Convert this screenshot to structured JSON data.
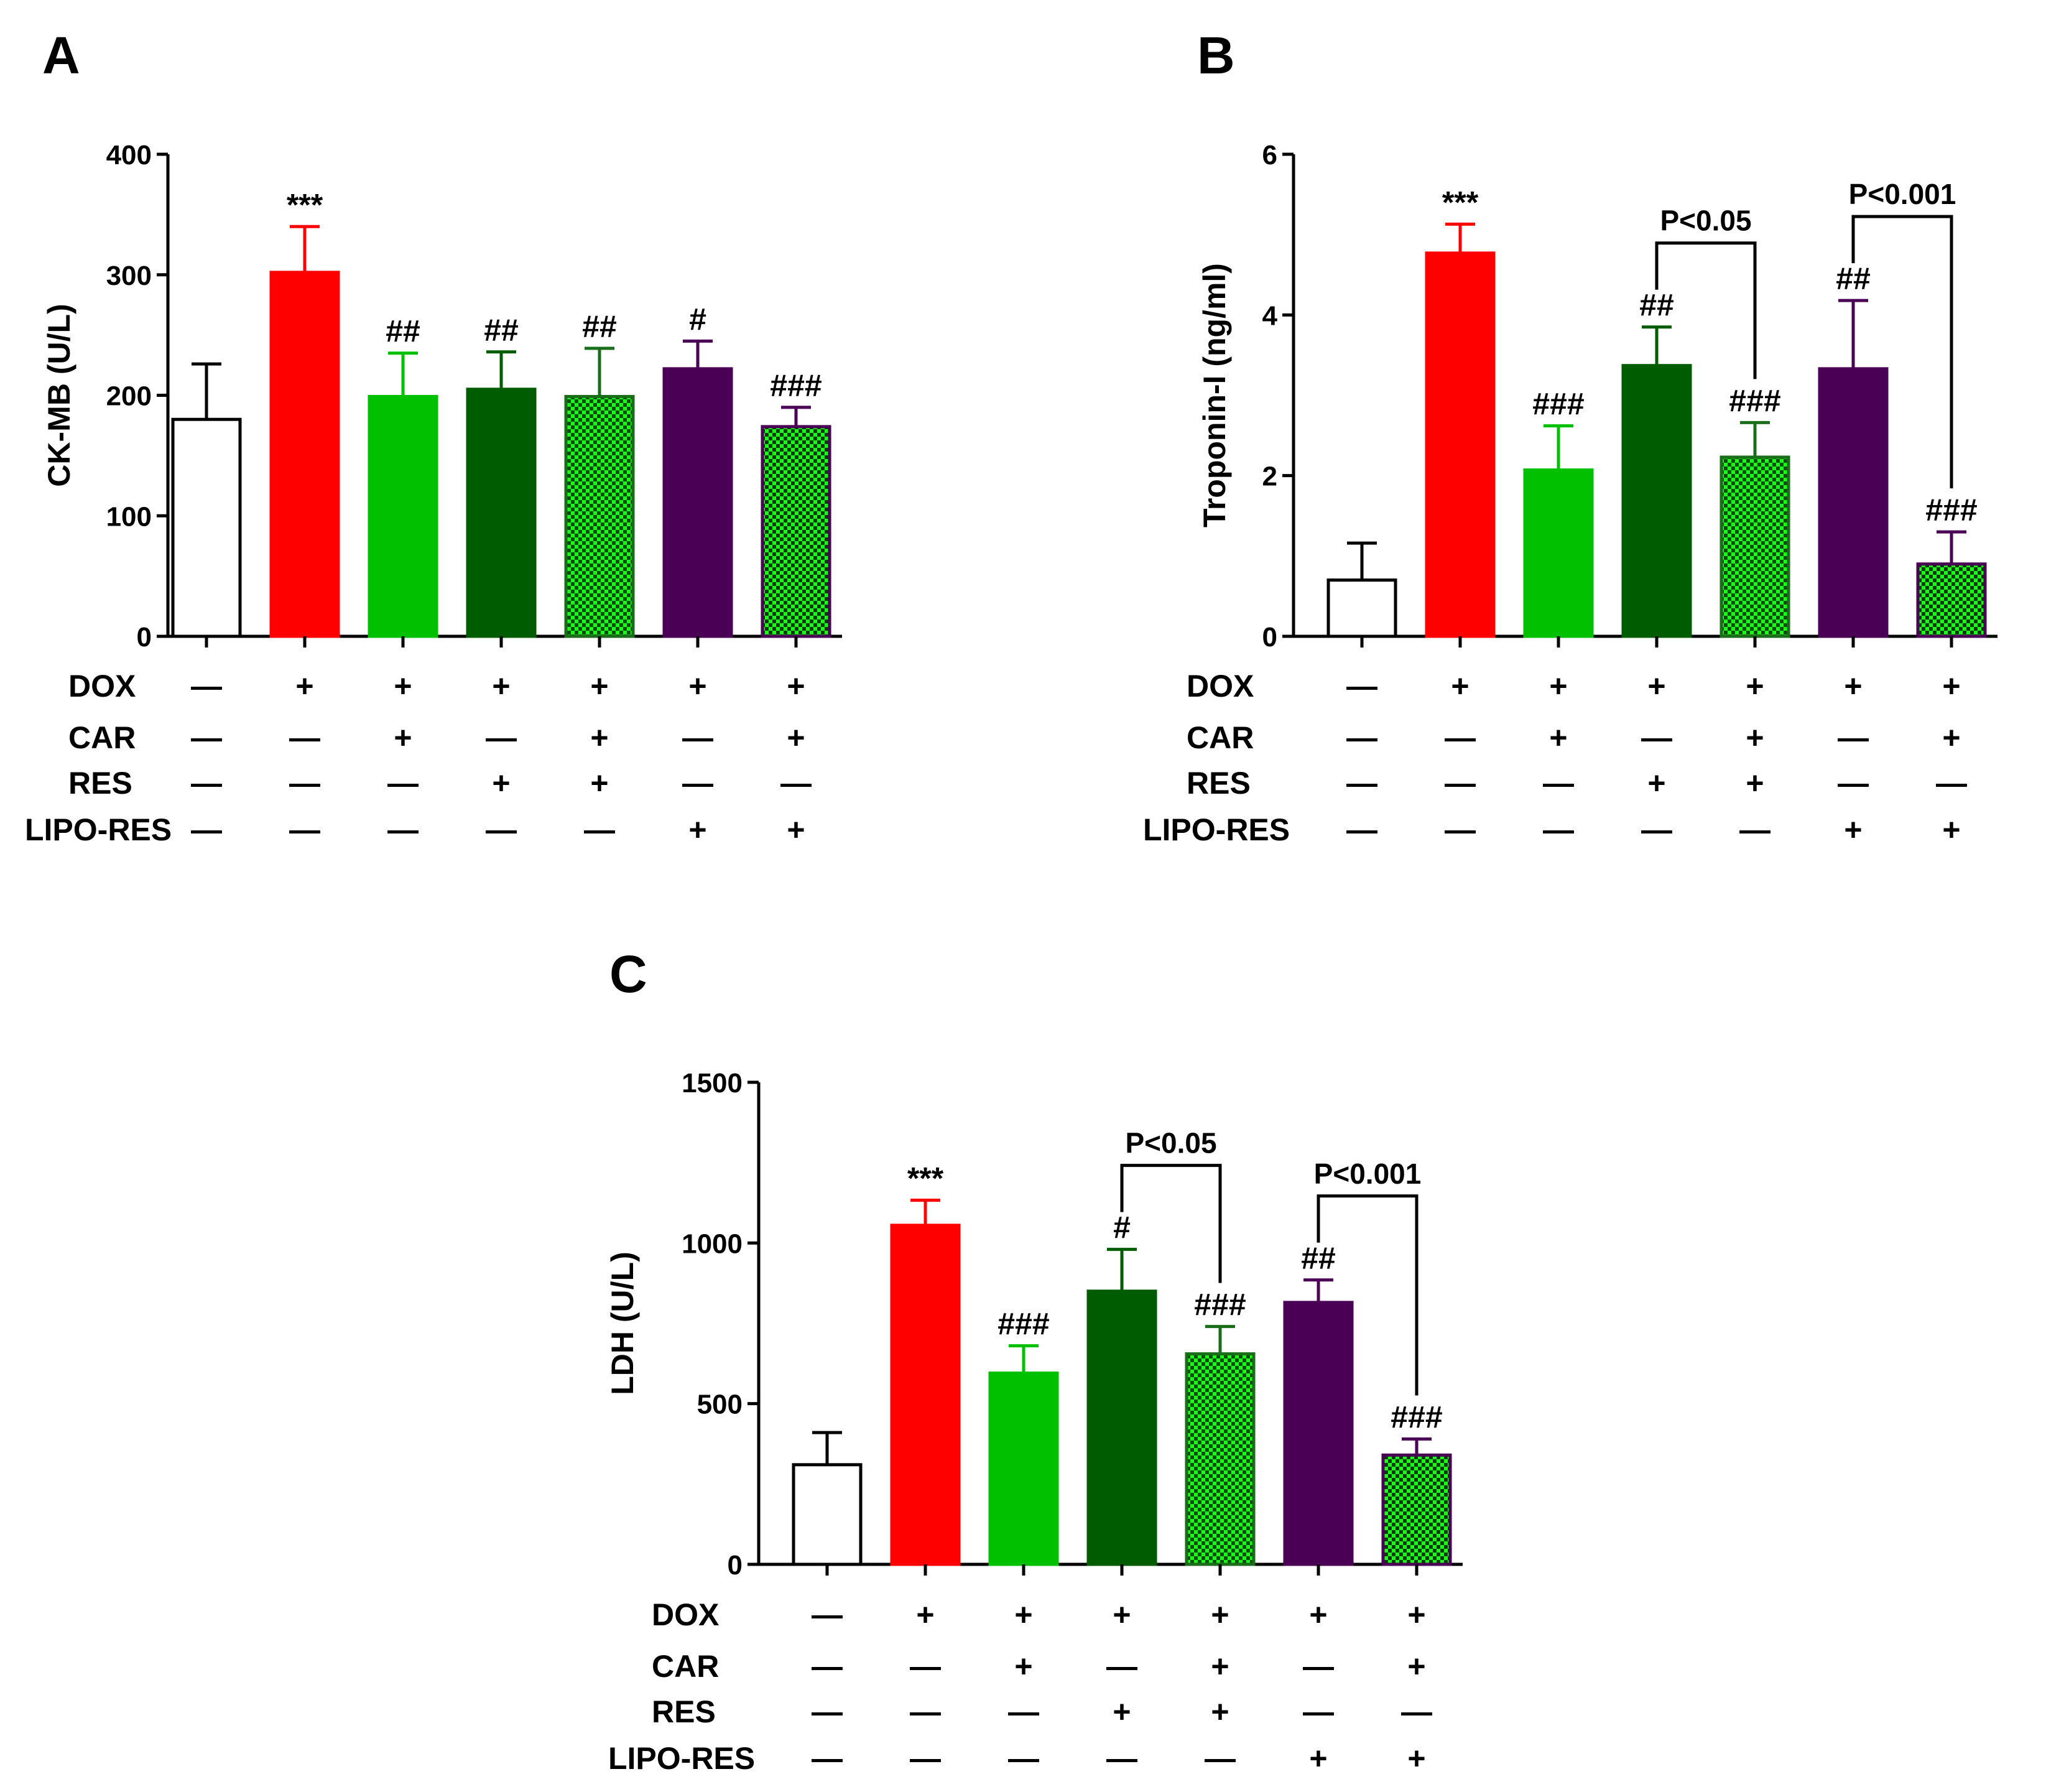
{
  "figure": {
    "group_rows": [
      "DOX",
      "CAR",
      "RES",
      "LIPO-RES"
    ],
    "groups": [
      {
        "DOX": "—",
        "CAR": "—",
        "RES": "—",
        "LIPO-RES": "—"
      },
      {
        "DOX": "+",
        "CAR": "—",
        "RES": "—",
        "LIPO-RES": "—"
      },
      {
        "DOX": "+",
        "CAR": "+",
        "RES": "—",
        "LIPO-RES": "—"
      },
      {
        "DOX": "+",
        "CAR": "—",
        "RES": "+",
        "LIPO-RES": "—"
      },
      {
        "DOX": "+",
        "CAR": "+",
        "RES": "+",
        "LIPO-RES": "—"
      },
      {
        "DOX": "+",
        "CAR": "—",
        "RES": "—",
        "LIPO-RES": "+"
      },
      {
        "DOX": "+",
        "CAR": "+",
        "RES": "—",
        "LIPO-RES": "+"
      }
    ],
    "bar_styles": [
      {
        "fill": "#ffffff",
        "stroke": "#000000",
        "pattern": false
      },
      {
        "fill": "#ff0000",
        "stroke": "#ff0000",
        "pattern": false
      },
      {
        "fill": "#00c000",
        "stroke": "#00c000",
        "pattern": false
      },
      {
        "fill": "#005c00",
        "stroke": "#005c00",
        "pattern": false
      },
      {
        "fill": "#1a6e1a",
        "stroke": "#1a6e1a",
        "pattern": true,
        "check_light": "#1aff1a",
        "check_dark": "#0a4d0a"
      },
      {
        "fill": "#4a0055",
        "stroke": "#4a0055",
        "pattern": false
      },
      {
        "fill": "#2d7a2d",
        "stroke": "#4a0055",
        "pattern": true,
        "check_light": "#1aff1a",
        "check_dark": "#0a3a0a"
      }
    ]
  },
  "chart_data": [
    {
      "panel": "A",
      "type": "bar",
      "title": "",
      "ylabel": "CK-MB (U/L)",
      "ylim": [
        0,
        400
      ],
      "yticks": [
        0,
        100,
        200,
        300,
        400
      ],
      "values": [
        180,
        302,
        199,
        205,
        199,
        222,
        174
      ],
      "errors": [
        46,
        38,
        36,
        31,
        40,
        23,
        16
      ],
      "annotations": [
        "",
        "***",
        "##",
        "##",
        "##",
        "#",
        "###"
      ],
      "comparisons": []
    },
    {
      "panel": "B",
      "type": "bar",
      "title": "",
      "ylabel": "Troponin-I  (ng/ml)",
      "ylim": [
        0,
        6
      ],
      "yticks": [
        0,
        2,
        4,
        6
      ],
      "values": [
        0.7,
        4.77,
        2.07,
        3.37,
        2.23,
        3.33,
        0.9
      ],
      "errors": [
        0.46,
        0.36,
        0.55,
        0.48,
        0.43,
        0.85,
        0.4
      ],
      "annotations": [
        "",
        "***",
        "###",
        "##",
        "###",
        "##",
        "###"
      ],
      "comparisons": [
        {
          "from": 3,
          "to": 4,
          "label": "P<0.05"
        },
        {
          "from": 5,
          "to": 6,
          "label": "P<0.001"
        }
      ]
    },
    {
      "panel": "C",
      "type": "bar",
      "title": "",
      "ylabel": "LDH (U/L)",
      "ylim": [
        0,
        1500
      ],
      "yticks": [
        0,
        500,
        1000,
        1500
      ],
      "values": [
        310,
        1055,
        595,
        850,
        655,
        815,
        340
      ],
      "errors": [
        100,
        78,
        85,
        130,
        85,
        70,
        50
      ],
      "annotations": [
        "",
        "***",
        "###",
        "#",
        "###",
        "##",
        "###"
      ],
      "comparisons": [
        {
          "from": 3,
          "to": 4,
          "label": "P<0.05"
        },
        {
          "from": 5,
          "to": 6,
          "label": "P<0.001"
        }
      ]
    }
  ]
}
